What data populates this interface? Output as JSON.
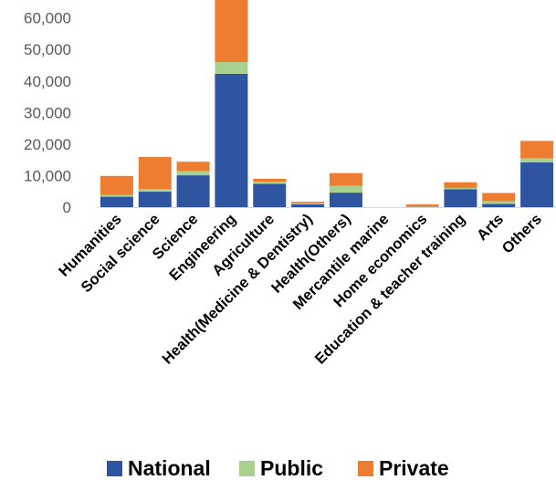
{
  "chart_data": {
    "type": "bar",
    "stacked": true,
    "categories": [
      "Humanities",
      "Social science",
      "Science",
      "Engineering",
      "Agriculture",
      "Health(Medicine & Dentistry)",
      "Health(Others)",
      "Mercantile marine",
      "Home economics",
      "Education & teacher training",
      "Arts",
      "Others"
    ],
    "series": [
      {
        "name": "National",
        "color": "#2f55a0",
        "values": [
          3300,
          4900,
          10100,
          42300,
          7400,
          900,
          4600,
          0,
          100,
          5700,
          1000,
          14200
        ]
      },
      {
        "name": "Public",
        "color": "#a9d18e",
        "values": [
          600,
          800,
          1300,
          3700,
          700,
          300,
          2200,
          0,
          100,
          400,
          900,
          1300
        ]
      },
      {
        "name": "Private",
        "color": "#ed7d31",
        "values": [
          6000,
          10200,
          3000,
          20500,
          900,
          500,
          4000,
          0,
          700,
          1800,
          2600,
          5500
        ]
      }
    ],
    "yticks": [
      "0",
      "10,000",
      "20,000",
      "30,000",
      "40,000",
      "50,000",
      "60,000"
    ],
    "ylim": [
      0,
      66500
    ],
    "legend_position": "bottom",
    "grid": false
  }
}
